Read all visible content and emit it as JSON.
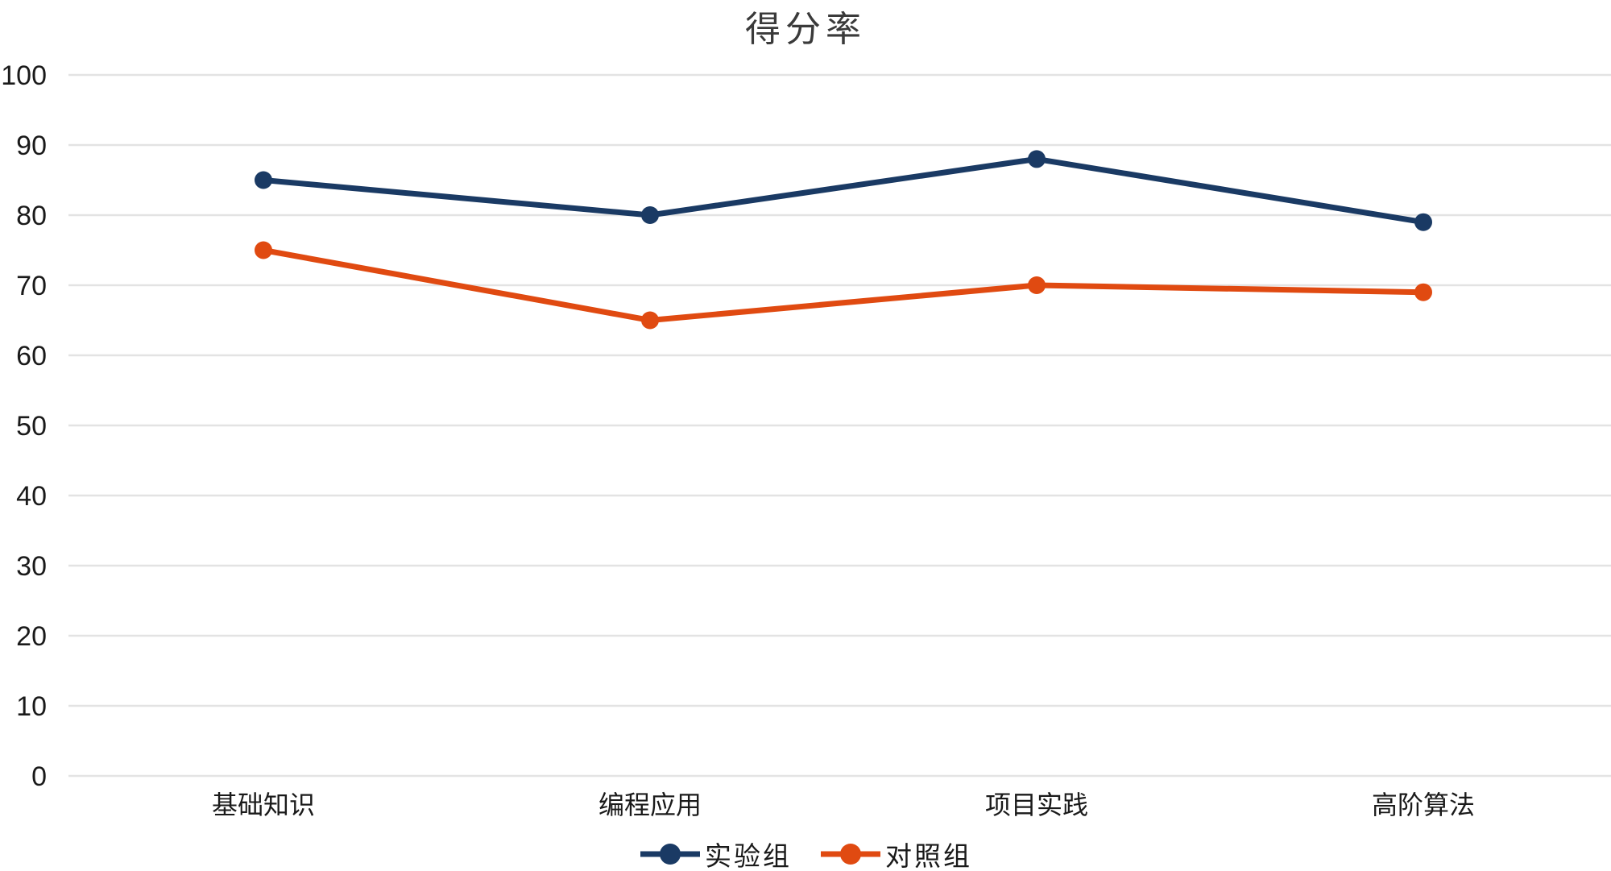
{
  "chart_data": {
    "type": "line",
    "title": "得分率",
    "categories": [
      "基础知识",
      "编程应用",
      "项目实践",
      "高阶算法"
    ],
    "series": [
      {
        "name": "实验组",
        "color": "#1a3a64",
        "values": [
          85,
          80,
          88,
          79
        ]
      },
      {
        "name": "对照组",
        "color": "#e04a11",
        "values": [
          75,
          65,
          70,
          69
        ]
      }
    ],
    "xlabel": "",
    "ylabel": "",
    "ylim": [
      0,
      100
    ],
    "ytick_step": 10,
    "ytick_labels": [
      "0",
      "10",
      "20",
      "30",
      "40",
      "50",
      "60",
      "70",
      "80",
      "90",
      "100"
    ],
    "grid": true,
    "gridline_color": "#e3e3e3",
    "text_color": "#1a1a1a",
    "background_color": "#ffffff",
    "legend_position": "bottom",
    "marker": "circle"
  }
}
